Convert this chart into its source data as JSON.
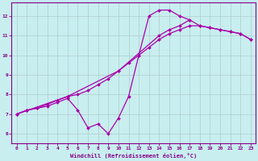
{
  "xlabel": "Windchill (Refroidissement éolien,°C)",
  "background_color": "#c8eef0",
  "line_color": "#aa00aa",
  "xlim": [
    -0.5,
    23.5
  ],
  "ylim": [
    5.5,
    12.7
  ],
  "xticks": [
    0,
    1,
    2,
    3,
    4,
    5,
    6,
    7,
    8,
    9,
    10,
    11,
    12,
    13,
    14,
    15,
    16,
    17,
    18,
    19,
    20,
    21,
    22,
    23
  ],
  "yticks": [
    6,
    7,
    8,
    9,
    10,
    11,
    12
  ],
  "grid_color": "#b0cccc",
  "line1_x": [
    0,
    1,
    2,
    3,
    4,
    5,
    5,
    6,
    7,
    8,
    9,
    10,
    11,
    12,
    13,
    14,
    15,
    16,
    17
  ],
  "line1_y": [
    7.0,
    7.2,
    7.3,
    7.4,
    7.6,
    7.8,
    7.8,
    7.2,
    6.3,
    6.5,
    6.0,
    6.8,
    7.9,
    10.0,
    12.0,
    12.3,
    12.3,
    12.0,
    11.8
  ],
  "line2_x": [
    0,
    1,
    2,
    3,
    4,
    5,
    6,
    7,
    8,
    9,
    10,
    11,
    12,
    13,
    14,
    15,
    16,
    17,
    18,
    19,
    20,
    21,
    22,
    23
  ],
  "line2_y": [
    7.0,
    7.2,
    7.3,
    7.5,
    7.7,
    7.9,
    8.0,
    8.2,
    8.5,
    8.8,
    9.2,
    9.6,
    10.0,
    10.4,
    10.8,
    11.1,
    11.3,
    11.5,
    11.5,
    11.4,
    11.3,
    11.2,
    11.1,
    10.8
  ],
  "line3_x": [
    0,
    5,
    10,
    14,
    15,
    16,
    17,
    18,
    19,
    20,
    21,
    22,
    23
  ],
  "line3_y": [
    7.0,
    7.9,
    9.2,
    11.0,
    11.3,
    11.5,
    11.8,
    11.5,
    11.4,
    11.3,
    11.2,
    11.1,
    10.8
  ]
}
